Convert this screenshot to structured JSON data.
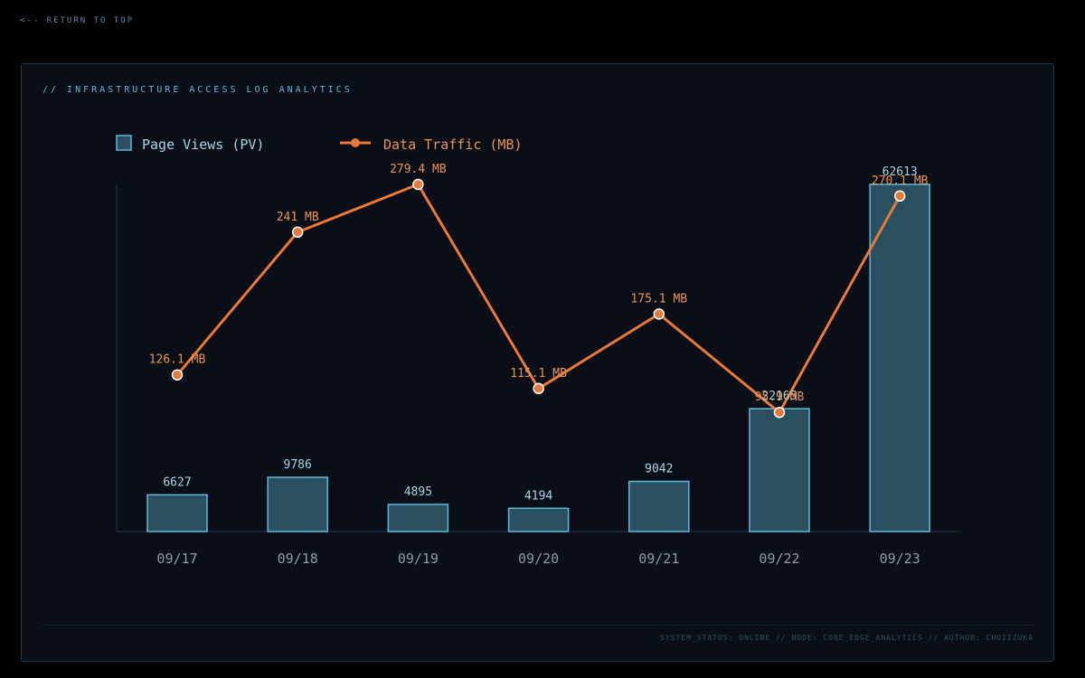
{
  "nav": {
    "return_label": "<-- RETURN TO TOP"
  },
  "panel": {
    "title": "// INFRASTRUCTURE ACCESS LOG ANALYTICS"
  },
  "footer": {
    "text": "SYSTEM_STATUS: ONLINE // NODE: CORE_EDGE_ANALYTICS // AUTHOR: CHOIIZUKA"
  },
  "colors": {
    "bar_fill": "#28505f",
    "bar_stroke": "#5fb9d8",
    "line": "#e8793a",
    "axis": "#1f3b4a"
  },
  "chart_data": {
    "type": "bar",
    "categories": [
      "09/17",
      "09/18",
      "09/19",
      "09/20",
      "09/21",
      "09/22",
      "09/23"
    ],
    "series": [
      {
        "name": "Page Views (PV)",
        "type": "bar",
        "values": [
          6627,
          9786,
          4895,
          4194,
          9042,
          22165,
          62613
        ],
        "labels": [
          "6627",
          "9786",
          "4895",
          "4194",
          "9042",
          "22165",
          "62613"
        ]
      },
      {
        "name": "Data Traffic (MB)",
        "type": "line",
        "values": [
          126.1,
          241,
          279.4,
          115.1,
          175.1,
          95.9,
          270.1
        ],
        "labels": [
          "126.1 MB",
          "241 MB",
          "279.4 MB",
          "115.1 MB",
          "175.1 MB",
          "95.9 MB",
          "270.1 MB"
        ]
      }
    ],
    "ylim_left": [
      0,
      62613
    ],
    "ylim_right": [
      0,
      279.4
    ],
    "legend_position": "top-left",
    "grid": false
  }
}
